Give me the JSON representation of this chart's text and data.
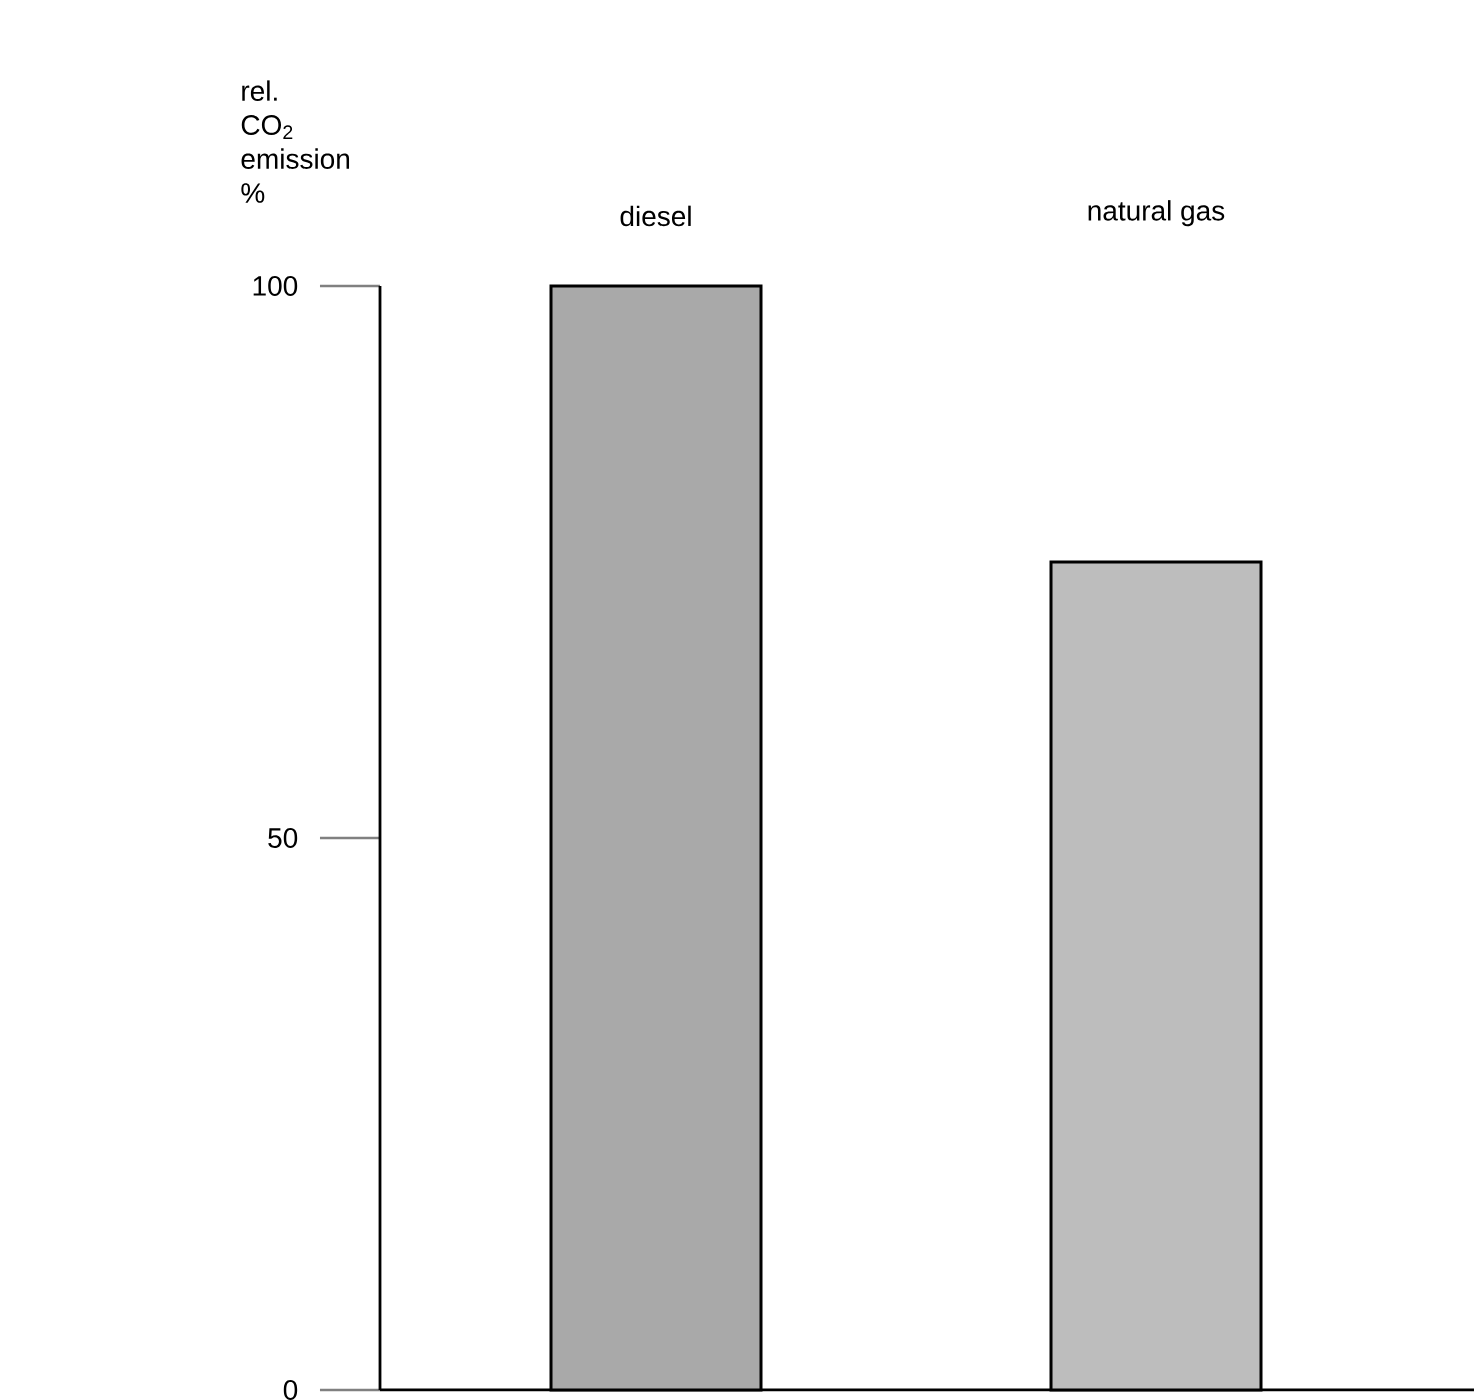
{
  "chart_data": {
    "type": "bar",
    "ylabel": "rel. CO$_{2}$ emission %",
    "categories": [
      "diesel",
      "natural gas"
    ],
    "values": [
      100,
      75
    ],
    "colors": [
      "#a9a9a9",
      "#bdbdbd"
    ],
    "ylim": [
      0,
      100
    ],
    "yticks": [
      0,
      50,
      100
    ],
    "grid": false
  }
}
